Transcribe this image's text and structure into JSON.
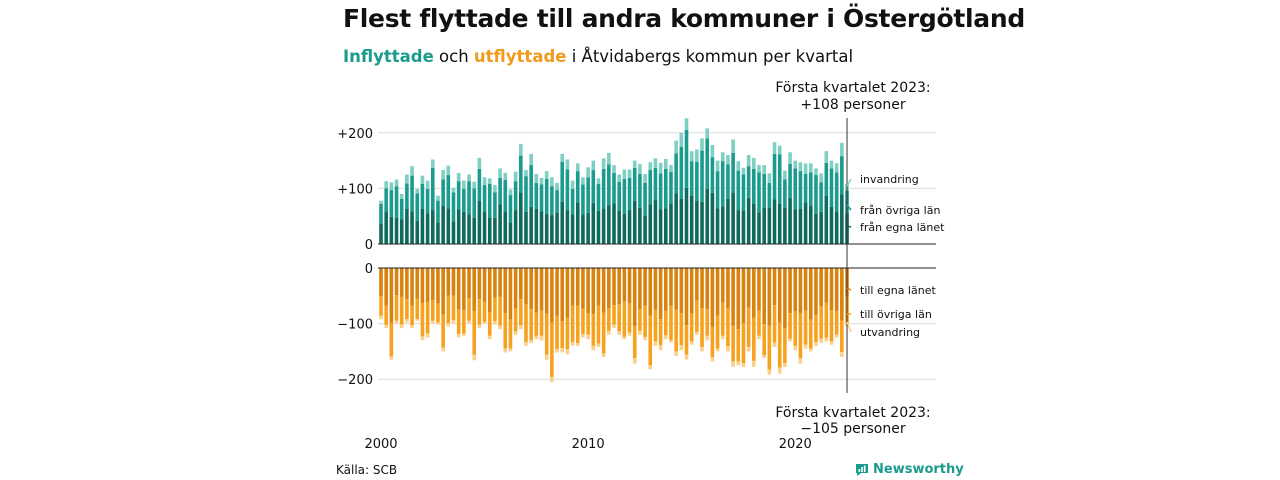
{
  "header": {
    "title": "Flest flyttade till andra kommuner i Östergötland",
    "subtitle_in": "Inflyttade",
    "subtitle_och": "och",
    "subtitle_out": "utflyttade",
    "subtitle_rest": "i Åtvidabergs kommun per kvartal"
  },
  "footer": {
    "source": "Källa: SCB",
    "brand": "Newsworthy"
  },
  "colors": {
    "in_dark": "#0e6a5c",
    "in_mid": "#1a9b8d",
    "in_light": "#7fd0c3",
    "out_dark": "#d8830f",
    "out_mid": "#f6a21e",
    "out_light": "#fbd08e",
    "accent_in": "#1a9b8d",
    "accent_out": "#f09a1e"
  },
  "chart_data": {
    "type": "bar",
    "stacked": true,
    "period": "kvartal",
    "x_ticks": [
      "2000",
      "2010",
      "2020"
    ],
    "y_ticks_in": [
      "+200",
      "+100",
      "0"
    ],
    "y_ticks_out": [
      "0",
      "−100",
      "−200"
    ],
    "ylim_in": [
      0,
      225
    ],
    "ylim_out": [
      -225,
      0
    ],
    "grid": true,
    "annotation_top": {
      "line1": "Första kvartalet 2023:",
      "line2": "+108 personer"
    },
    "annotation_bottom": {
      "line1": "Första kvartalet 2023:",
      "line2": "−105 personer"
    },
    "series_labels": {
      "invandring": "invandring",
      "fran_ovriga_lan": "från övriga län",
      "fran_egna_lanet": "från egna länet",
      "till_egna_lanet": "till egna länet",
      "till_ovriga_lan": "till övriga län",
      "utvandring": "utvandring"
    },
    "inflyttade_totals": [
      78,
      113,
      111,
      116,
      90,
      125,
      140,
      99,
      123,
      114,
      152,
      87,
      133,
      141,
      101,
      128,
      114,
      125,
      112,
      155,
      120,
      118,
      106,
      136,
      128,
      98,
      130,
      180,
      133,
      162,
      126,
      119,
      131,
      120,
      110,
      162,
      152,
      114,
      145,
      120,
      138,
      150,
      118,
      154,
      164,
      142,
      125,
      134,
      134,
      150,
      144,
      126,
      147,
      154,
      146,
      153,
      142,
      186,
      200,
      226,
      167,
      170,
      190,
      208,
      178,
      150,
      165,
      160,
      188,
      149,
      137,
      160,
      155,
      142,
      142,
      127,
      183,
      177,
      132,
      165,
      150,
      147,
      145,
      145,
      136,
      127,
      167,
      150,
      145,
      182,
      108
    ],
    "utflyttade_totals": [
      -92,
      -108,
      -165,
      -100,
      -108,
      -98,
      -108,
      -95,
      -130,
      -125,
      -100,
      -102,
      -150,
      -105,
      -100,
      -125,
      -122,
      -100,
      -166,
      -108,
      -100,
      -128,
      -102,
      -110,
      -152,
      -150,
      -120,
      -110,
      -140,
      -135,
      -128,
      -130,
      -165,
      -205,
      -152,
      -152,
      -155,
      -140,
      -140,
      -125,
      -128,
      -148,
      -142,
      -160,
      -120,
      -108,
      -120,
      -128,
      -122,
      -172,
      -120,
      -130,
      -182,
      -140,
      -148,
      -128,
      -134,
      -158,
      -148,
      -165,
      -138,
      -120,
      -150,
      -130,
      -168,
      -150,
      -128,
      -150,
      -178,
      -175,
      -178,
      -150,
      -178,
      -128,
      -162,
      -192,
      -142,
      -190,
      -178,
      -132,
      -148,
      -172,
      -145,
      -150,
      -140,
      -135,
      -132,
      -138,
      -125,
      -160,
      -105
    ]
  }
}
